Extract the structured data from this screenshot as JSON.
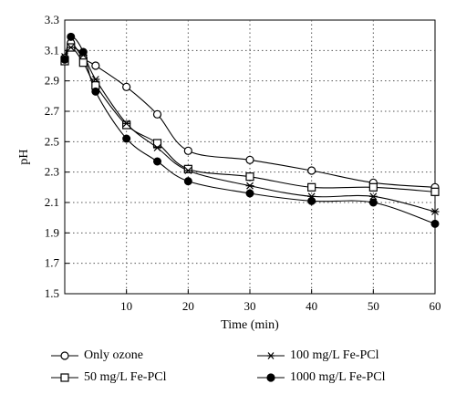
{
  "chart_data": {
    "type": "line",
    "xlabel": "Time (min)",
    "ylabel": "pH",
    "xlim": [
      0,
      60
    ],
    "ylim": [
      1.5,
      3.3
    ],
    "x_ticks": [
      10,
      20,
      30,
      40,
      50,
      60
    ],
    "y_ticks": [
      1.5,
      1.7,
      1.9,
      2.1,
      2.3,
      2.5,
      2.7,
      2.9,
      3.1,
      3.3
    ],
    "y_tick_labels": [
      "1.5",
      "1.7",
      "1.9",
      "2.1",
      "2.3",
      "2.5",
      "2.7",
      "2.9",
      "3.1",
      "3.3"
    ],
    "grid": "dotted",
    "legend_position": "bottom",
    "series": [
      {
        "name": "Only ozone",
        "marker": "open-circle",
        "x": [
          0,
          1,
          3,
          5,
          10,
          15,
          20,
          30,
          40,
          50,
          60
        ],
        "y": [
          3.05,
          3.15,
          3.05,
          3.0,
          2.86,
          2.68,
          2.44,
          2.38,
          2.31,
          2.23,
          2.2
        ]
      },
      {
        "name": "50 mg/L Fe-PCl",
        "marker": "open-square",
        "x": [
          0,
          1,
          3,
          5,
          10,
          15,
          20,
          30,
          40,
          50,
          60
        ],
        "y": [
          3.03,
          3.12,
          3.02,
          2.87,
          2.61,
          2.49,
          2.32,
          2.27,
          2.2,
          2.2,
          2.17
        ]
      },
      {
        "name": "100 mg/L Fe-PCl",
        "marker": "star",
        "x": [
          0,
          1,
          3,
          5,
          10,
          15,
          20,
          30,
          40,
          50,
          60
        ],
        "y": [
          3.06,
          3.12,
          3.07,
          2.91,
          2.62,
          2.46,
          2.31,
          2.21,
          2.14,
          2.14,
          2.04
        ]
      },
      {
        "name": "1000 mg/L Fe-PCl",
        "marker": "filled-circle",
        "x": [
          0,
          1,
          3,
          5,
          10,
          15,
          20,
          30,
          40,
          50,
          60
        ],
        "y": [
          3.04,
          3.19,
          3.09,
          2.83,
          2.52,
          2.37,
          2.24,
          2.16,
          2.11,
          2.1,
          1.96
        ]
      }
    ]
  }
}
